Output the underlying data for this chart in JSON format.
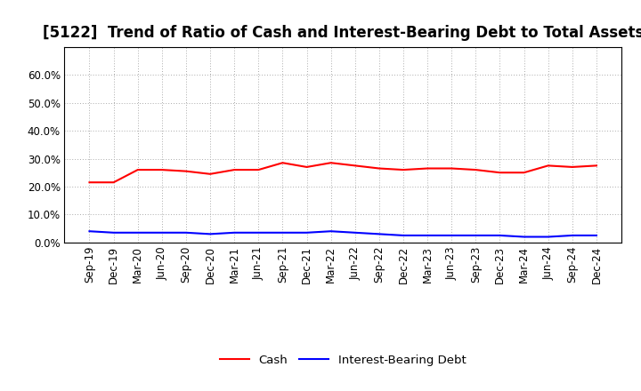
{
  "title": "[5122]  Trend of Ratio of Cash and Interest-Bearing Debt to Total Assets",
  "x_labels": [
    "Sep-19",
    "Dec-19",
    "Mar-20",
    "Jun-20",
    "Sep-20",
    "Dec-20",
    "Mar-21",
    "Jun-21",
    "Sep-21",
    "Dec-21",
    "Mar-22",
    "Jun-22",
    "Sep-22",
    "Dec-22",
    "Mar-23",
    "Jun-23",
    "Sep-23",
    "Dec-23",
    "Mar-24",
    "Jun-24",
    "Sep-24",
    "Dec-24"
  ],
  "cash": [
    21.5,
    21.5,
    26.0,
    26.0,
    25.5,
    24.5,
    26.0,
    26.0,
    28.5,
    27.0,
    28.5,
    27.5,
    26.5,
    26.0,
    26.5,
    26.5,
    26.0,
    25.0,
    25.0,
    27.5,
    27.0,
    27.5
  ],
  "interest_bearing_debt": [
    4.0,
    3.5,
    3.5,
    3.5,
    3.5,
    3.0,
    3.5,
    3.5,
    3.5,
    3.5,
    4.0,
    3.5,
    3.0,
    2.5,
    2.5,
    2.5,
    2.5,
    2.5,
    2.0,
    2.0,
    2.5,
    2.5
  ],
  "ylim": [
    0,
    70
  ],
  "yticks": [
    0,
    10,
    20,
    30,
    40,
    50,
    60
  ],
  "ytick_labels": [
    "0.0%",
    "10.0%",
    "20.0%",
    "30.0%",
    "40.0%",
    "50.0%",
    "60.0%"
  ],
  "cash_color": "#ff0000",
  "debt_color": "#0000ff",
  "grid_color": "#aaaaaa",
  "background_color": "#ffffff",
  "legend_cash": "Cash",
  "legend_debt": "Interest-Bearing Debt",
  "title_fontsize": 12,
  "axis_fontsize": 8.5,
  "legend_fontsize": 9.5
}
